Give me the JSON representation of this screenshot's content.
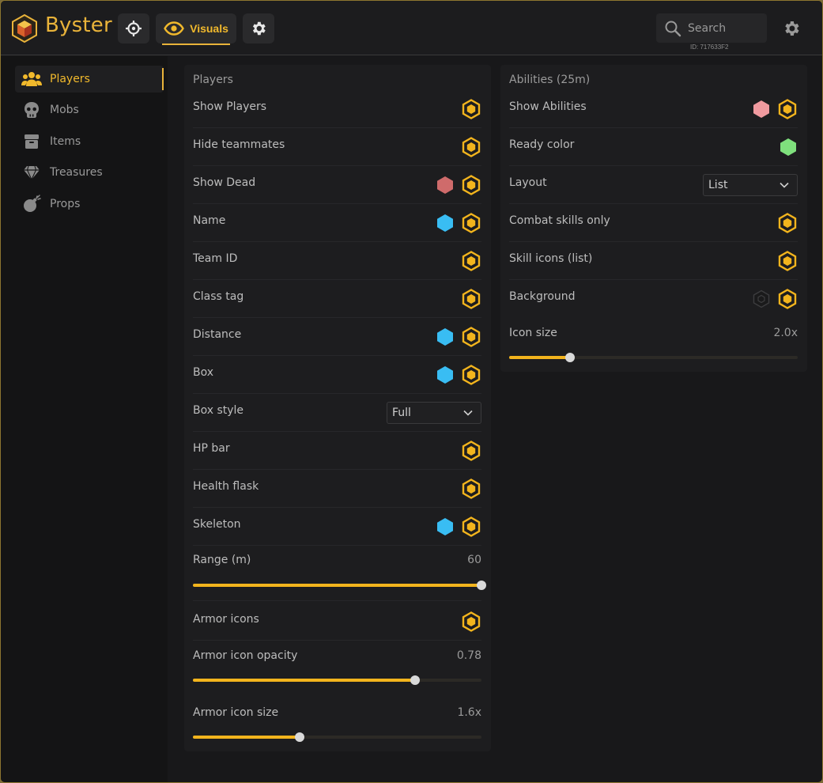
{
  "header": {
    "brand": "Byster",
    "visuals_tab": "Visuals",
    "search_placeholder": "Search",
    "user_id": "ID: 717633F2"
  },
  "colors": {
    "accent": "#f2b41d",
    "red": "#cf6b6b",
    "blue": "#39bdf3",
    "pink": "#f09a9f",
    "green": "#7fe07d"
  },
  "sidebar": {
    "items": [
      {
        "label": "Players",
        "icon": "users-icon",
        "active": true
      },
      {
        "label": "Mobs",
        "icon": "skull-icon",
        "active": false
      },
      {
        "label": "Items",
        "icon": "box-icon",
        "active": false
      },
      {
        "label": "Treasures",
        "icon": "diamond-icon",
        "active": false
      },
      {
        "label": "Props",
        "icon": "bomb-icon",
        "active": false
      }
    ]
  },
  "players": {
    "title": "Players",
    "rows": [
      {
        "label": "Show Players",
        "color": null
      },
      {
        "label": "Hide teammates",
        "color": null
      },
      {
        "label": "Show Dead",
        "color": "red"
      },
      {
        "label": "Name",
        "color": "blue"
      },
      {
        "label": "Team ID",
        "color": null
      },
      {
        "label": "Class tag",
        "color": null
      },
      {
        "label": "Distance",
        "color": "blue"
      },
      {
        "label": "Box",
        "color": "blue"
      }
    ],
    "box_style": {
      "label": "Box style",
      "value": "Full"
    },
    "rows2": [
      {
        "label": "HP bar",
        "color": null
      },
      {
        "label": "Health flask",
        "color": null
      },
      {
        "label": "Skeleton",
        "color": "blue"
      }
    ],
    "range": {
      "label": "Range (m)",
      "value": "60",
      "fraction": 1.0
    },
    "armor_icons": {
      "label": "Armor icons"
    },
    "armor_opacity": {
      "label": "Armor icon opacity",
      "value": "0.78",
      "fraction": 0.77
    },
    "armor_size": {
      "label": "Armor icon size",
      "value": "1.6x",
      "fraction": 0.37
    }
  },
  "abilities": {
    "title": "Abilities (25m)",
    "show": {
      "label": "Show Abilities",
      "color": "pink"
    },
    "ready_color": {
      "label": "Ready color",
      "color": "green"
    },
    "layout": {
      "label": "Layout",
      "value": "List"
    },
    "combat": {
      "label": "Combat skills only"
    },
    "skill_icons": {
      "label": "Skill icons (list)"
    },
    "background": {
      "label": "Background"
    },
    "icon_size": {
      "label": "Icon size",
      "value": "2.0x",
      "fraction": 0.21
    }
  }
}
